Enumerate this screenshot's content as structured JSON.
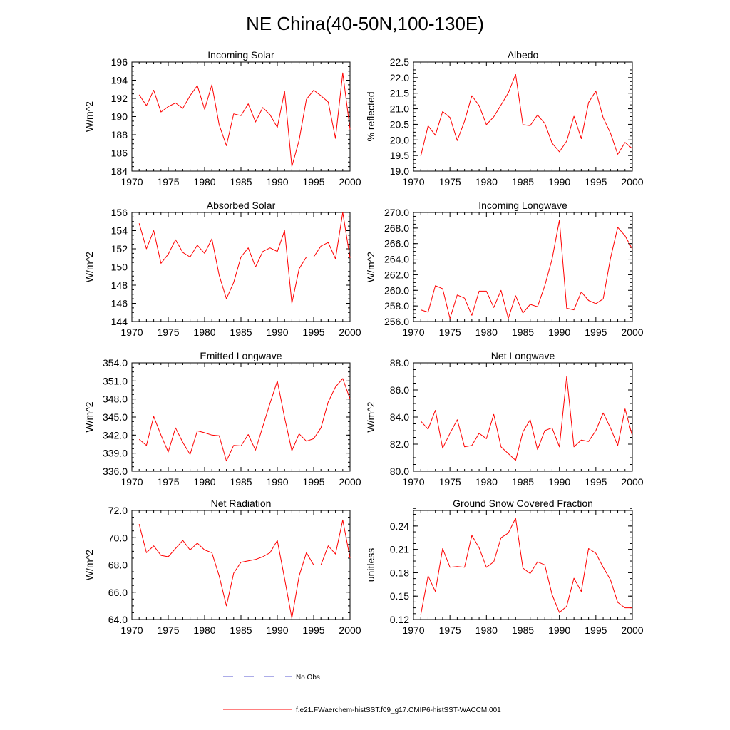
{
  "figure": {
    "title": "NE China(40-50N,100-130E)",
    "legend": {
      "obs_label": "No Obs",
      "obs_color": "#5a5ad0",
      "model_label": "f.e21.FWaerchem-histSST.f09_g17.CMIP6-histSST-WACCM.001",
      "model_color": "#ff0000"
    }
  },
  "chart_data": [
    {
      "type": "line",
      "title": "Incoming Solar",
      "xlabel": "",
      "ylabel": "W/m^2",
      "xlim": [
        1970,
        2000
      ],
      "ylim": [
        184,
        196
      ],
      "xticks": [
        "1970",
        "1975",
        "1980",
        "1985",
        "1990",
        "1995",
        "2000"
      ],
      "yticks": [
        "184",
        "186",
        "188",
        "190",
        "192",
        "194",
        "196"
      ],
      "x": [
        1971,
        1972,
        1973,
        1974,
        1975,
        1976,
        1977,
        1978,
        1979,
        1980,
        1981,
        1982,
        1983,
        1984,
        1985,
        1986,
        1987,
        1988,
        1989,
        1990,
        1991,
        1992,
        1993,
        1994,
        1995,
        1996,
        1997,
        1998,
        1999,
        2000
      ],
      "series": [
        {
          "name": "f.e21.FWaerchem-histSST.f09_g17.CMIP6-histSST-WACCM.001",
          "values": [
            192.4,
            191.2,
            192.9,
            190.5,
            191.1,
            191.5,
            190.9,
            192.3,
            193.4,
            190.8,
            193.5,
            189.1,
            186.8,
            190.3,
            190.1,
            191.4,
            189.4,
            191.0,
            190.2,
            188.8,
            192.8,
            184.5,
            187.4,
            191.9,
            192.9,
            192.3,
            191.6,
            187.6,
            194.8,
            188.6
          ]
        }
      ]
    },
    {
      "type": "line",
      "title": "Albedo",
      "xlabel": "",
      "ylabel": "% reflected",
      "xlim": [
        1970,
        2000
      ],
      "ylim": [
        19.0,
        22.5
      ],
      "xticks": [
        "1970",
        "1975",
        "1980",
        "1985",
        "1990",
        "1995",
        "2000"
      ],
      "yticks": [
        "19.0",
        "19.5",
        "20.0",
        "20.5",
        "21.0",
        "21.5",
        "22.0",
        "22.5"
      ],
      "x": [
        1971,
        1972,
        1973,
        1974,
        1975,
        1976,
        1977,
        1978,
        1979,
        1980,
        1981,
        1982,
        1983,
        1984,
        1985,
        1986,
        1987,
        1988,
        1989,
        1990,
        1991,
        1992,
        1993,
        1994,
        1995,
        1996,
        1997,
        1998,
        1999,
        2000
      ],
      "series": [
        {
          "name": "f.e21.FWaerchem-histSST.f09_g17.CMIP6-histSST-WACCM.001",
          "values": [
            19.48,
            20.45,
            20.15,
            20.91,
            20.72,
            19.98,
            20.6,
            21.42,
            21.1,
            20.49,
            20.74,
            21.12,
            21.51,
            22.1,
            20.49,
            20.46,
            20.8,
            20.53,
            19.9,
            19.62,
            19.96,
            20.76,
            20.04,
            21.2,
            21.57,
            20.71,
            20.22,
            19.54,
            19.92,
            19.72
          ]
        }
      ]
    },
    {
      "type": "line",
      "title": "Absorbed Solar",
      "xlabel": "",
      "ylabel": "W/m^2",
      "xlim": [
        1970,
        2000
      ],
      "ylim": [
        144,
        156
      ],
      "xticks": [
        "1970",
        "1975",
        "1980",
        "1985",
        "1990",
        "1995",
        "2000"
      ],
      "yticks": [
        "144",
        "146",
        "148",
        "150",
        "152",
        "154",
        "156"
      ],
      "x": [
        1971,
        1972,
        1973,
        1974,
        1975,
        1976,
        1977,
        1978,
        1979,
        1980,
        1981,
        1982,
        1983,
        1984,
        1985,
        1986,
        1987,
        1988,
        1989,
        1990,
        1991,
        1992,
        1993,
        1994,
        1995,
        1996,
        1997,
        1998,
        1999,
        2000
      ],
      "series": [
        {
          "name": "f.e21.FWaerchem-histSST.f09_g17.CMIP6-histSST-WACCM.001",
          "values": [
            154.8,
            152.0,
            154.0,
            150.4,
            151.4,
            153.0,
            151.6,
            151.1,
            152.4,
            151.5,
            153.1,
            149.1,
            146.5,
            148.3,
            151.1,
            152.1,
            150.0,
            151.7,
            152.1,
            151.7,
            154.0,
            146.0,
            149.8,
            151.1,
            151.1,
            152.3,
            152.7,
            150.9,
            156.0,
            151.0
          ]
        }
      ]
    },
    {
      "type": "line",
      "title": "Incoming Longwave",
      "xlabel": "",
      "ylabel": "W/m^2",
      "xlim": [
        1970,
        2000
      ],
      "ylim": [
        256.0,
        270.0
      ],
      "xticks": [
        "1970",
        "1975",
        "1980",
        "1985",
        "1990",
        "1995",
        "2000"
      ],
      "yticks": [
        "256.0",
        "258.0",
        "260.0",
        "262.0",
        "264.0",
        "266.0",
        "268.0",
        "270.0"
      ],
      "x": [
        1971,
        1972,
        1973,
        1974,
        1975,
        1976,
        1977,
        1978,
        1979,
        1980,
        1981,
        1982,
        1983,
        1984,
        1985,
        1986,
        1987,
        1988,
        1989,
        1990,
        1991,
        1992,
        1993,
        1994,
        1995,
        1996,
        1997,
        1998,
        1999,
        2000
      ],
      "series": [
        {
          "name": "f.e21.FWaerchem-histSST.f09_g17.CMIP6-histSST-WACCM.001",
          "values": [
            257.5,
            257.2,
            260.6,
            260.2,
            256.4,
            259.4,
            259.0,
            256.8,
            259.9,
            259.9,
            257.8,
            260.0,
            256.4,
            259.3,
            257.1,
            258.2,
            257.9,
            260.6,
            264.0,
            269.0,
            257.7,
            257.5,
            259.8,
            258.7,
            258.3,
            258.9,
            264.1,
            268.1,
            267.0,
            265.3
          ]
        }
      ]
    },
    {
      "type": "line",
      "title": "Emitted Longwave",
      "xlabel": "",
      "ylabel": "W/m^2",
      "xlim": [
        1970,
        2000
      ],
      "ylim": [
        336.0,
        354.0
      ],
      "xticks": [
        "1970",
        "1975",
        "1980",
        "1985",
        "1990",
        "1995",
        "2000"
      ],
      "yticks": [
        "336.0",
        "339.0",
        "342.0",
        "345.0",
        "348.0",
        "351.0",
        "354.0"
      ],
      "x": [
        1971,
        1972,
        1973,
        1974,
        1975,
        1976,
        1977,
        1978,
        1979,
        1980,
        1981,
        1982,
        1983,
        1984,
        1985,
        1986,
        1987,
        1988,
        1989,
        1990,
        1991,
        1992,
        1993,
        1994,
        1995,
        1996,
        1997,
        1998,
        1999,
        2000
      ],
      "series": [
        {
          "name": "f.e21.FWaerchem-histSST.f09_g17.CMIP6-histSST-WACCM.001",
          "values": [
            341.3,
            340.3,
            345.1,
            342.0,
            339.2,
            343.2,
            340.8,
            338.8,
            342.7,
            342.4,
            342.0,
            341.9,
            337.7,
            340.3,
            340.2,
            342.1,
            339.5,
            343.4,
            347.3,
            351.0,
            344.9,
            339.4,
            342.2,
            341.0,
            341.4,
            343.2,
            347.5,
            350.0,
            351.4,
            348.0
          ]
        }
      ]
    },
    {
      "type": "line",
      "title": "Net Longwave",
      "xlabel": "",
      "ylabel": "W/m^2",
      "xlim": [
        1970,
        2000
      ],
      "ylim": [
        80.0,
        88.0
      ],
      "xticks": [
        "1970",
        "1975",
        "1980",
        "1985",
        "1990",
        "1995",
        "2000"
      ],
      "yticks": [
        "80.0",
        "82.0",
        "84.0",
        "86.0",
        "88.0"
      ],
      "x": [
        1971,
        1972,
        1973,
        1974,
        1975,
        1976,
        1977,
        1978,
        1979,
        1980,
        1981,
        1982,
        1983,
        1984,
        1985,
        1986,
        1987,
        1988,
        1989,
        1990,
        1991,
        1992,
        1993,
        1994,
        1995,
        1996,
        1997,
        1998,
        1999,
        2000
      ],
      "series": [
        {
          "name": "f.e21.FWaerchem-histSST.f09_g17.CMIP6-histSST-WACCM.001",
          "values": [
            83.7,
            83.1,
            84.5,
            81.7,
            82.8,
            83.8,
            81.8,
            81.9,
            82.8,
            82.4,
            84.2,
            81.8,
            81.3,
            80.8,
            82.9,
            83.8,
            81.6,
            83.0,
            83.2,
            81.8,
            87.0,
            81.8,
            82.3,
            82.2,
            83.0,
            84.3,
            83.2,
            81.9,
            84.6,
            82.6
          ]
        }
      ]
    },
    {
      "type": "line",
      "title": "Net Radiation",
      "xlabel": "",
      "ylabel": "W/m^2",
      "xlim": [
        1970,
        2000
      ],
      "ylim": [
        64.0,
        72.0
      ],
      "xticks": [
        "1970",
        "1975",
        "1980",
        "1985",
        "1990",
        "1995",
        "2000"
      ],
      "yticks": [
        "64.0",
        "66.0",
        "68.0",
        "70.0",
        "72.0"
      ],
      "x": [
        1971,
        1972,
        1973,
        1974,
        1975,
        1976,
        1977,
        1978,
        1979,
        1980,
        1981,
        1982,
        1983,
        1984,
        1985,
        1986,
        1987,
        1988,
        1989,
        1990,
        1991,
        1992,
        1993,
        1994,
        1995,
        1996,
        1997,
        1998,
        1999,
        2000
      ],
      "series": [
        {
          "name": "f.e21.FWaerchem-histSST.f09_g17.CMIP6-histSST-WACCM.001",
          "values": [
            71.0,
            68.9,
            69.4,
            68.7,
            68.6,
            69.2,
            69.8,
            69.1,
            69.6,
            69.1,
            68.9,
            67.2,
            65.0,
            67.4,
            68.2,
            68.3,
            68.4,
            68.6,
            68.9,
            69.8,
            67.0,
            64.1,
            67.2,
            68.9,
            68.0,
            68.0,
            69.4,
            68.8,
            71.3,
            68.5
          ]
        }
      ]
    },
    {
      "type": "line",
      "title": "Ground Snow Covered Fraction",
      "xlabel": "",
      "ylabel": "unitless",
      "xlim": [
        1970,
        2000
      ],
      "ylim": [
        0.12,
        0.26
      ],
      "xticks": [
        "1970",
        "1975",
        "1980",
        "1985",
        "1990",
        "1995",
        "2000"
      ],
      "yticks": [
        "0.12",
        "0.15",
        "0.18",
        "0.21",
        "0.24"
      ],
      "x": [
        1971,
        1972,
        1973,
        1974,
        1975,
        1976,
        1977,
        1978,
        1979,
        1980,
        1981,
        1982,
        1983,
        1984,
        1985,
        1986,
        1987,
        1988,
        1989,
        1990,
        1991,
        1992,
        1993,
        1994,
        1995,
        1996,
        1997,
        1998,
        1999,
        2000
      ],
      "series": [
        {
          "name": "f.e21.FWaerchem-histSST.f09_g17.CMIP6-histSST-WACCM.001",
          "values": [
            0.126,
            0.176,
            0.156,
            0.211,
            0.187,
            0.188,
            0.187,
            0.228,
            0.212,
            0.187,
            0.194,
            0.225,
            0.231,
            0.25,
            0.186,
            0.179,
            0.194,
            0.19,
            0.152,
            0.129,
            0.137,
            0.173,
            0.156,
            0.211,
            0.205,
            0.187,
            0.171,
            0.142,
            0.135,
            0.135
          ]
        }
      ]
    }
  ]
}
